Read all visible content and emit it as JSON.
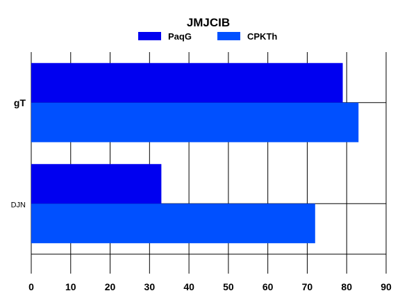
{
  "chart_data": {
    "type": "bar",
    "orientation": "horizontal",
    "title": "JMJCIB",
    "categories": [
      "gT",
      "DJN"
    ],
    "category_label_bold": [
      true,
      false
    ],
    "series": [
      {
        "name": "PaqG",
        "values": [
          79,
          33
        ],
        "color": "#0000f0"
      },
      {
        "name": "CPKTh",
        "values": [
          83,
          72
        ],
        "color": "#0050ff"
      }
    ],
    "xlim": [
      0,
      90
    ],
    "xticks": [
      0,
      10,
      20,
      30,
      40,
      50,
      60,
      70,
      80,
      90
    ],
    "xlabel": "",
    "ylabel": "",
    "grid": true,
    "legend_position": "top-center"
  }
}
